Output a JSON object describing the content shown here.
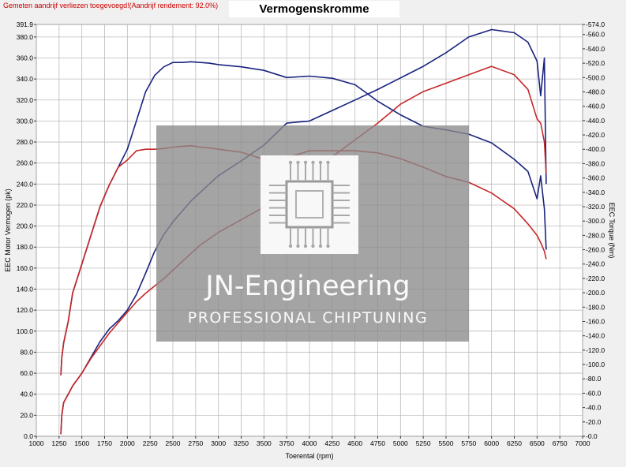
{
  "header": {
    "note": "Gemeten aandrijf verliezen toegevoegd!(Aandrijf rendement: 92.0%)",
    "title": "Vermogenskromme"
  },
  "watermark": {
    "brand": "JN-Engineering",
    "tagline": "PROFESSIONAL CHIPTUNING"
  },
  "chart_data": {
    "type": "line",
    "title": "Vermogenskromme",
    "xlabel": "Toerental (rpm)",
    "ylabel_left": "EEC Motor Vermogen (pk)",
    "ylabel_right": "EEC Torque (Nm)",
    "xlim": [
      1000,
      7000
    ],
    "ylim_left": [
      0,
      391.9
    ],
    "ylim_right": [
      0,
      574.0
    ],
    "x_ticks": [
      1000,
      1250,
      1500,
      1750,
      2000,
      2250,
      2500,
      2750,
      3000,
      3250,
      3500,
      3750,
      4000,
      4250,
      4500,
      4750,
      5000,
      5250,
      5500,
      5750,
      6000,
      6250,
      6500,
      6750,
      7000
    ],
    "y_left_ticks": [
      "0.0",
      "20.0",
      "40.0",
      "60.0",
      "80.0",
      "100.0",
      "120.0",
      "140.0",
      "160.0",
      "180.0",
      "200.0",
      "220.0",
      "240.0",
      "260.0",
      "280.0",
      "300.0",
      "320.0",
      "340.0",
      "360.0",
      "380.0",
      "391.9"
    ],
    "y_right_ticks": [
      "0.0",
      "20.0",
      "40.0",
      "60.0",
      "80.0",
      "100.0",
      "120.0",
      "140.0",
      "160.0",
      "180.0",
      "200.0",
      "220.0",
      "240.0",
      "260.0",
      "280.0",
      "300.0",
      "320.0",
      "340.0",
      "360.0",
      "380.0",
      "400.0",
      "420.0",
      "440.0",
      "460.0",
      "480.0",
      "500.0",
      "520.0",
      "540.0",
      "560.0",
      "574.0"
    ],
    "grid": true,
    "series": [
      {
        "axis": "left",
        "color": "#1a237e",
        "x": [
          1270,
          1280,
          1300,
          1350,
          1400,
          1500,
          1600,
          1700,
          1800,
          1900,
          2000,
          2100,
          2200,
          2300,
          2400,
          2500,
          2600,
          2700,
          2800,
          2900,
          3000,
          3250,
          3500,
          3750,
          4000,
          4250,
          4500,
          4750,
          5000,
          5250,
          5500,
          5750,
          6000,
          6250,
          6400,
          6500,
          6540,
          6580,
          6600
        ],
        "values": [
          2,
          20,
          32,
          40,
          48,
          60,
          75,
          90,
          102,
          110,
          120,
          135,
          155,
          176,
          192,
          204,
          214,
          224,
          232,
          240,
          248,
          262,
          277,
          298,
          300,
          310,
          320,
          330,
          341,
          352,
          365,
          380,
          387,
          384,
          375,
          357,
          324,
          360,
          240
        ]
      },
      {
        "axis": "left",
        "color": "#c62828",
        "x": [
          1270,
          1280,
          1300,
          1350,
          1400,
          1500,
          1600,
          1700,
          1800,
          1900,
          2000,
          2100,
          2200,
          2300,
          2400,
          2500,
          2600,
          2700,
          2800,
          2900,
          3000,
          3250,
          3500,
          3750,
          4000,
          4250,
          4500,
          4750,
          5000,
          5250,
          5500,
          5750,
          6000,
          6250,
          6400,
          6500,
          6540,
          6580,
          6600
        ],
        "values": [
          2,
          20,
          32,
          40,
          48,
          60,
          74,
          86,
          98,
          108,
          118,
          128,
          136,
          143,
          150,
          158,
          166,
          174,
          182,
          188,
          194,
          206,
          218,
          240,
          252,
          266,
          282,
          298,
          316,
          328,
          336,
          344,
          352,
          344,
          330,
          302,
          298,
          280,
          250
        ]
      },
      {
        "axis": "right",
        "color": "#1a237e",
        "x": [
          1270,
          1280,
          1300,
          1350,
          1400,
          1500,
          1600,
          1700,
          1800,
          1900,
          2000,
          2100,
          2200,
          2300,
          2400,
          2500,
          2600,
          2700,
          2800,
          2900,
          3000,
          3250,
          3500,
          3750,
          4000,
          4250,
          4500,
          4750,
          5000,
          5250,
          5500,
          5750,
          6000,
          6250,
          6400,
          6500,
          6540,
          6580,
          6600
        ],
        "values": [
          85,
          110,
          130,
          160,
          200,
          240,
          280,
          320,
          350,
          375,
          400,
          440,
          480,
          503,
          515,
          521,
          521,
          522,
          521,
          520,
          518,
          515,
          510,
          500,
          502,
          499,
          490,
          467,
          448,
          432,
          427,
          421,
          409,
          386,
          369,
          331,
          363,
          317,
          260
        ]
      },
      {
        "axis": "right",
        "color": "#c62828",
        "x": [
          1270,
          1280,
          1300,
          1350,
          1400,
          1500,
          1600,
          1700,
          1800,
          1900,
          2000,
          2100,
          2200,
          2300,
          2400,
          2500,
          2600,
          2700,
          2800,
          2900,
          3000,
          3250,
          3500,
          3750,
          4000,
          4250,
          4500,
          4750,
          5000,
          5250,
          5500,
          5750,
          6000,
          6250,
          6400,
          6500,
          6540,
          6580,
          6600
        ],
        "values": [
          85,
          110,
          130,
          160,
          200,
          240,
          280,
          320,
          350,
          375,
          385,
          398,
          400,
          400,
          401,
          403,
          404,
          405,
          403,
          402,
          400,
          396,
          386,
          388,
          398,
          398,
          398,
          395,
          387,
          375,
          362,
          354,
          339,
          317,
          296,
          280,
          270,
          258,
          247
        ]
      }
    ]
  }
}
